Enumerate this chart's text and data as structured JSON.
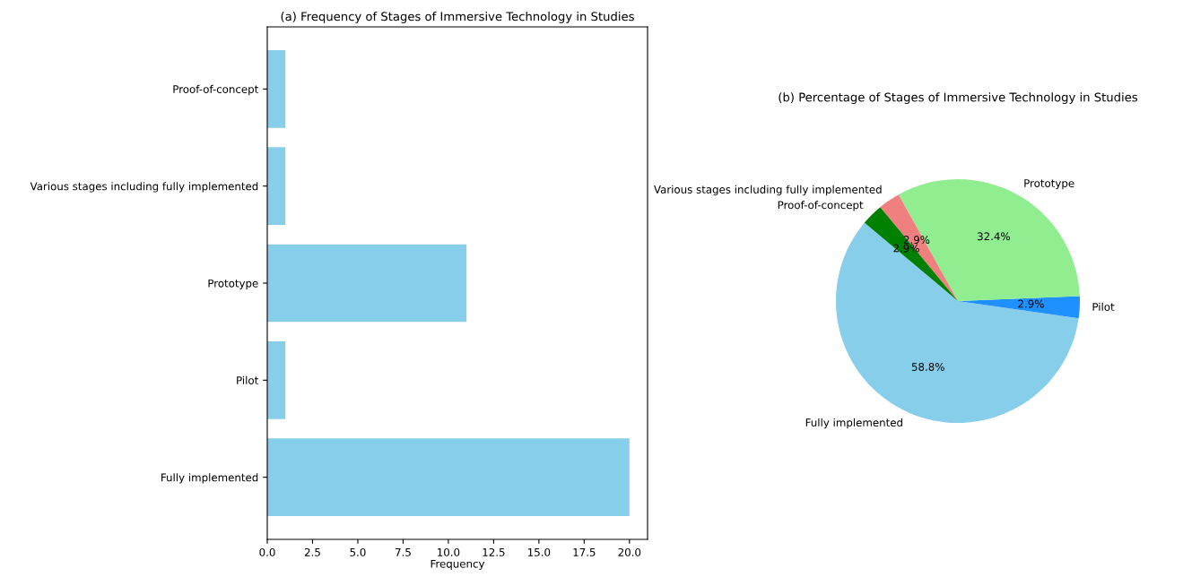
{
  "chart_data": [
    {
      "type": "bar",
      "orientation": "horizontal",
      "title": "(a) Frequency of Stages of Immersive Technology in Studies",
      "xlabel": "Frequency",
      "categories": [
        "Proof-of-concept",
        "Various stages including fully implemented",
        "Prototype",
        "Pilot",
        "Fully implemented"
      ],
      "values": [
        1,
        1,
        11,
        1,
        20
      ],
      "color": "#87ceeb",
      "xlim": [
        0,
        21
      ],
      "xticks": [
        {
          "value": 0,
          "label": "0.0"
        },
        {
          "value": 2.5,
          "label": "2.5"
        },
        {
          "value": 5,
          "label": "5.0"
        },
        {
          "value": 7.5,
          "label": "7.5"
        },
        {
          "value": 10,
          "label": "10.0"
        },
        {
          "value": 12.5,
          "label": "12.5"
        },
        {
          "value": 15,
          "label": "15.0"
        },
        {
          "value": 17.5,
          "label": "17.5"
        },
        {
          "value": 20,
          "label": "20.0"
        }
      ],
      "grid": false,
      "legend": false
    },
    {
      "type": "pie",
      "title": "(b) Percentage of Stages of Immersive Technology in Studies",
      "categories": [
        "Fully implemented",
        "Pilot",
        "Prototype",
        "Various stages including fully implemented",
        "Proof-of-concept"
      ],
      "values": [
        58.8,
        2.9,
        32.4,
        2.9,
        2.9
      ],
      "colors": [
        "#87ceeb",
        "#1e90ff",
        "#90ee90",
        "#f08080",
        "#008000"
      ],
      "value_labels": [
        "58.8%",
        "2.9%",
        "32.4%",
        "2.9%",
        "2.9%"
      ],
      "legend": false
    }
  ]
}
